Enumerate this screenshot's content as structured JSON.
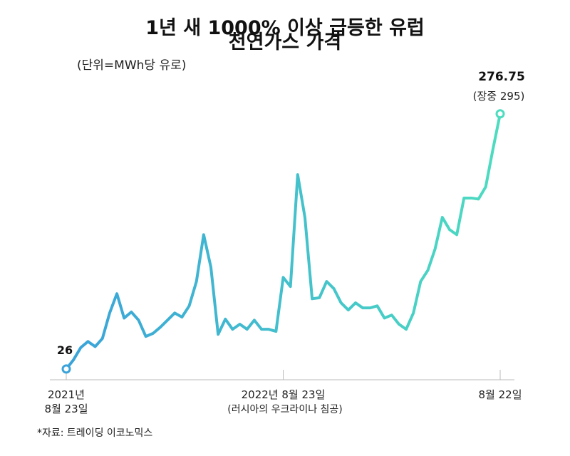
{
  "chart_data": {
    "type": "line",
    "title": "1년 새 1000% 이상 급등한 유럽 천연가스 가격",
    "subtitle": "(단위=MWh당 유로)",
    "source": "*자료: 트레이딩 이코노믹스",
    "annotations": [
      "(러시아의 우크라이나 침공)",
      "(장중 295)"
    ],
    "categories": [
      "2021년\n8월 23일",
      null,
      null,
      null,
      null,
      null,
      null,
      null,
      null,
      null,
      null,
      null,
      null,
      null,
      null,
      null,
      null,
      null,
      null,
      null,
      null,
      null,
      null,
      null,
      null,
      null,
      null,
      null,
      null,
      null,
      "2022년 8월 23일",
      null,
      null,
      null,
      null,
      null,
      null,
      null,
      null,
      null,
      null,
      null,
      null,
      null,
      null,
      null,
      null,
      null,
      null,
      null,
      null,
      null,
      null,
      null,
      null,
      null,
      null,
      null,
      null,
      null,
      "8월 22일"
    ],
    "values": [
      26,
      35,
      47,
      53,
      48,
      56,
      81,
      100,
      76,
      82,
      74,
      58,
      61,
      67,
      74,
      81,
      77,
      88,
      112,
      158,
      126,
      60,
      75,
      65,
      70,
      65,
      74,
      65,
      65,
      63,
      116,
      107,
      217,
      175,
      95,
      96,
      112,
      105,
      91,
      84,
      91,
      86,
      86,
      88,
      76,
      79,
      70,
      65,
      81,
      112,
      123,
      144,
      175,
      163,
      158,
      194,
      194,
      193,
      205,
      242,
      276.75
    ],
    "color": [
      "#3aa3d9",
      "#4ddcc0"
    ],
    "ylim": [
      0,
      320
    ]
  }
}
